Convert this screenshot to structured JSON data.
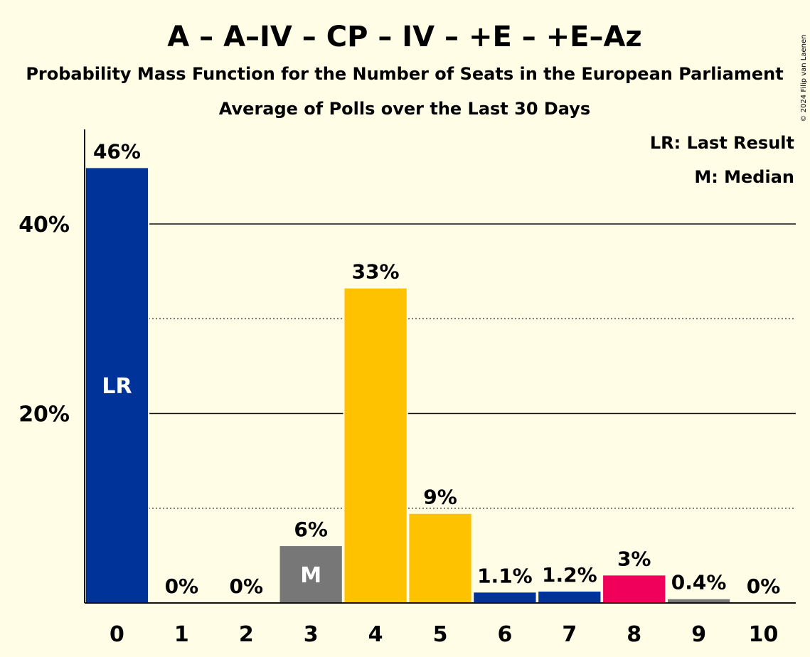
{
  "chart_data": {
    "type": "bar",
    "title": "A – A–IV – CP – IV – +E – +E–Az",
    "subtitle": "Probability Mass Function for the Number of Seats in the European Parliament",
    "subtitle2": "Average of Polls over the Last 30 Days",
    "categories": [
      "0",
      "1",
      "2",
      "3",
      "4",
      "5",
      "6",
      "7",
      "8",
      "9",
      "10"
    ],
    "values": [
      45.9,
      0,
      0,
      6.0,
      33.2,
      9.4,
      1.1,
      1.2,
      2.9,
      0.4,
      0
    ],
    "value_labels": [
      "46%",
      "0%",
      "0%",
      "6%",
      "33%",
      "9%",
      "1.1%",
      "1.2%",
      "3%",
      "0.4%",
      "0%"
    ],
    "bar_colors": [
      "#003399",
      "#003399",
      "#003399",
      "#777777",
      "#ffc200",
      "#ffc200",
      "#003399",
      "#003399",
      "#f0005a",
      "#777777",
      "#777777"
    ],
    "ylim": [
      0,
      50
    ],
    "yticks": [
      {
        "value": 20,
        "label": "20%"
      },
      {
        "value": 40,
        "label": "40%"
      }
    ],
    "minor_gridlines": [
      10,
      30
    ],
    "last_result_index": 0,
    "median_index": 3,
    "lr_marker": "LR",
    "median_marker": "M",
    "legend": [
      "LR: Last Result",
      "M: Median"
    ],
    "legend_position": "top-right",
    "copyright": "© 2024 Filip van Laenen"
  }
}
